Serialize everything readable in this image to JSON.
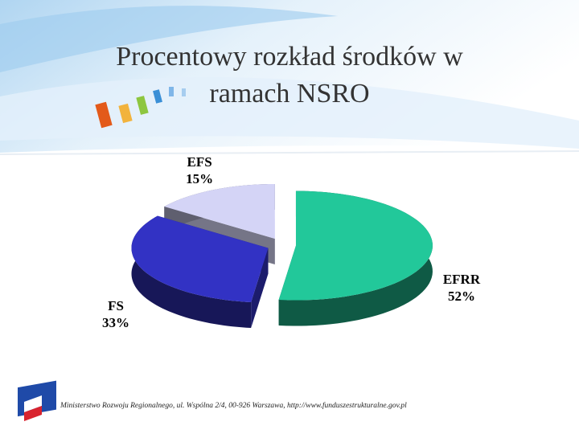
{
  "chart_data": {
    "type": "pie3d",
    "title": "Procentowy rozkład środków w ramach NSRO",
    "categories": [
      "EFRR",
      "FS",
      "EFS"
    ],
    "values": [
      52,
      33,
      15
    ],
    "value_labels": [
      "52%",
      "33%",
      "15%"
    ],
    "colors": [
      "#22c89a",
      "#3232c4",
      "#d4d4f6"
    ]
  },
  "footer": "Ministerstwo Rozwoju Regionalnego, ul. Wspólna 2/4, 00-926 Warszawa, http://www.funduszestrukturalne.gov.pl"
}
